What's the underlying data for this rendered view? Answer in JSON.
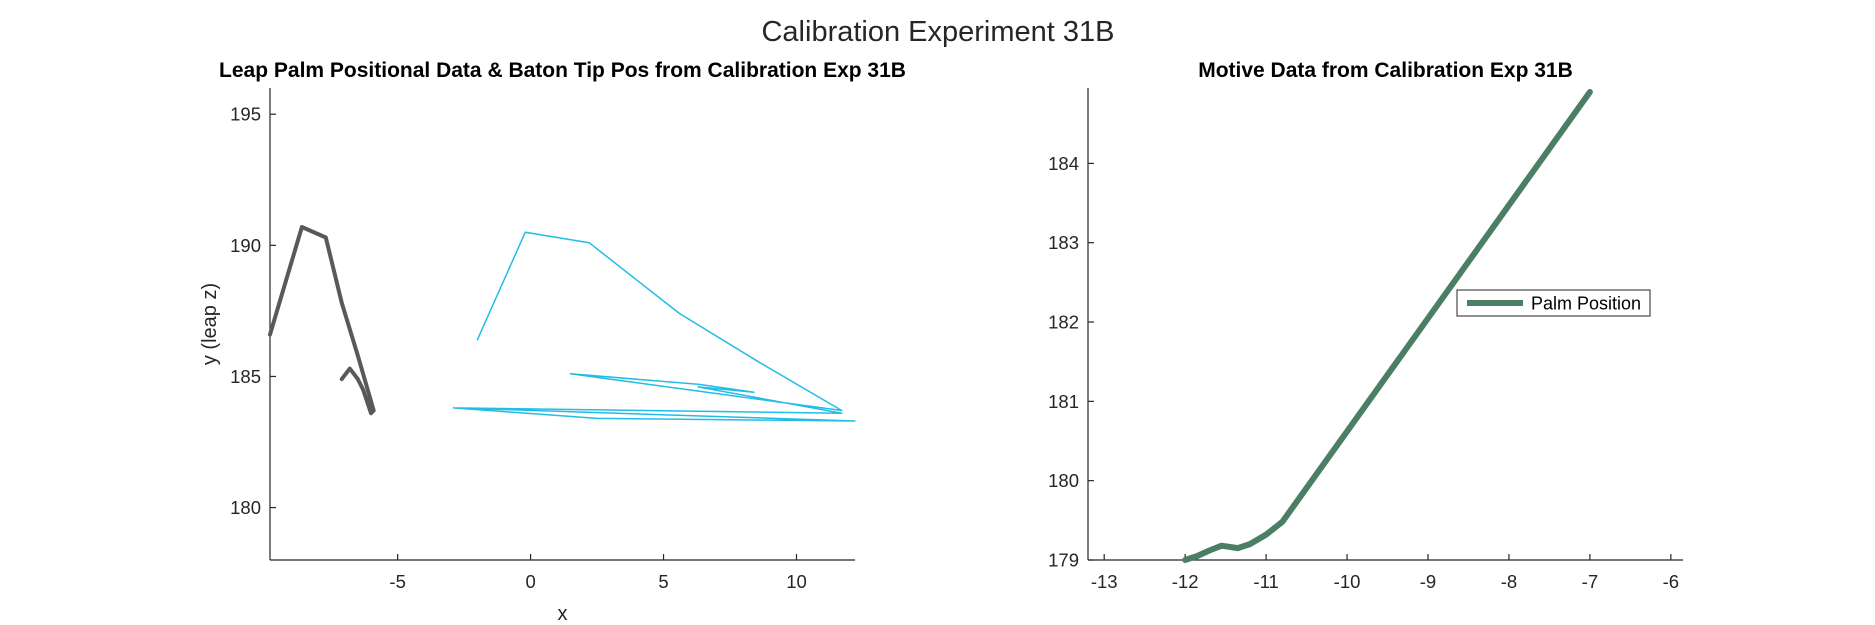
{
  "figure": {
    "title": "Calibration Experiment 31B"
  },
  "chart_data": [
    {
      "type": "line",
      "title": "Leap Palm Positional Data & Baton Tip Pos from Calibration Exp 31B",
      "xlabel": "x",
      "ylabel": "y (leap z)",
      "xlim": [
        -9.8,
        12.2
      ],
      "ylim": [
        178,
        196
      ],
      "xticks": [
        -5,
        0,
        5,
        10
      ],
      "yticks": [
        180,
        185,
        190,
        195
      ],
      "grid": false,
      "series": [
        {
          "color": "#595959",
          "width": 4,
          "x": [
            -9.8,
            -8.6,
            -7.7,
            -7.1,
            -6.5,
            -5.9,
            -6.0,
            -6.3,
            -6.5,
            -6.8,
            -7.1
          ],
          "y": [
            186.6,
            190.7,
            190.3,
            187.8,
            185.8,
            183.7,
            183.6,
            184.5,
            184.9,
            185.3,
            184.9
          ]
        },
        {
          "color": "#22BDE6",
          "width": 1.5,
          "x": [
            -2.0,
            -0.2,
            2.2,
            5.6,
            8.5,
            11.7,
            1.5,
            6.3,
            8.4,
            6.3,
            11.7,
            -2.9,
            12.2,
            2.5,
            -2.9
          ],
          "y": [
            186.4,
            190.5,
            190.1,
            187.4,
            185.6,
            183.7,
            185.1,
            184.7,
            184.4,
            184.6,
            183.6,
            183.8,
            183.3,
            183.4,
            183.8
          ]
        }
      ]
    },
    {
      "type": "line",
      "title": "Motive Data from Calibration Exp 31B",
      "xlim": [
        -13.2,
        -5.85
      ],
      "ylim": [
        179,
        184.95
      ],
      "xticks": [
        -13,
        -12,
        -11,
        -10,
        -9,
        -8,
        -7,
        -6
      ],
      "yticks": [
        179,
        180,
        181,
        182,
        183,
        184
      ],
      "grid": false,
      "legend": "center-right",
      "series": [
        {
          "name": "Palm Position",
          "color": "#4A7F63",
          "width": 6,
          "x": [
            -12.0,
            -11.85,
            -11.7,
            -11.55,
            -11.35,
            -11.2,
            -11.0,
            -10.8,
            -7.0
          ],
          "y": [
            179.0,
            179.05,
            179.12,
            179.18,
            179.15,
            179.2,
            179.32,
            179.48,
            184.9
          ]
        }
      ]
    }
  ]
}
